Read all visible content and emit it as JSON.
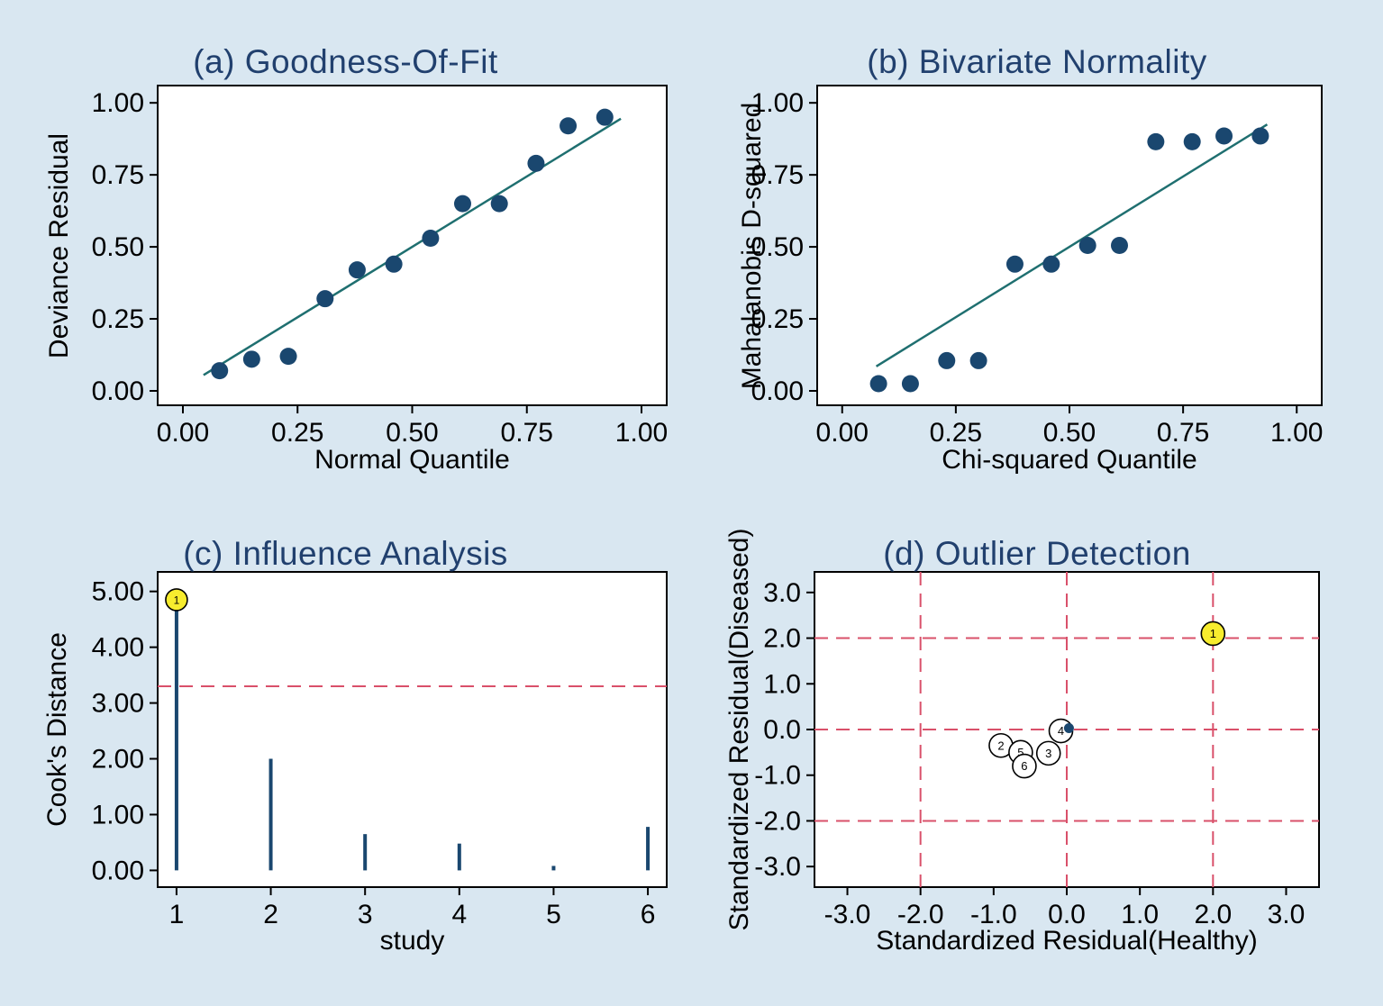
{
  "colors": {
    "page_bg": "#d9e7f1",
    "panel_bg": "#ffffff",
    "title_navy": "#21406e",
    "marker_navy": "#1a476f",
    "fit_teal": "#1f6f70",
    "ref_red": "#d9506a",
    "highlight_yellow": "#f7ec2e",
    "axis_black": "#000000"
  },
  "chart_data": [
    {
      "panel": "a",
      "type": "scatter",
      "title": "(a) Goodness-Of-Fit",
      "xlabel": "Normal Quantile",
      "ylabel": "Deviance Residual",
      "xlim": [
        -0.055,
        1.055
      ],
      "ylim": [
        -0.05,
        1.06
      ],
      "xticks": [
        {
          "v": 0,
          "label": "0.00"
        },
        {
          "v": 0.25,
          "label": "0.25"
        },
        {
          "v": 0.5,
          "label": "0.50"
        },
        {
          "v": 0.75,
          "label": "0.75"
        },
        {
          "v": 1,
          "label": "1.00"
        }
      ],
      "yticks": [
        {
          "v": 0,
          "label": "0.00"
        },
        {
          "v": 0.25,
          "label": "0.25"
        },
        {
          "v": 0.5,
          "label": "0.50"
        },
        {
          "v": 0.75,
          "label": "0.75"
        },
        {
          "v": 1,
          "label": "1.00"
        }
      ],
      "points": [
        [
          0.08,
          0.07
        ],
        [
          0.15,
          0.11
        ],
        [
          0.23,
          0.12
        ],
        [
          0.31,
          0.32
        ],
        [
          0.38,
          0.42
        ],
        [
          0.46,
          0.44
        ],
        [
          0.54,
          0.53
        ],
        [
          0.61,
          0.65
        ],
        [
          0.69,
          0.65
        ],
        [
          0.77,
          0.79
        ],
        [
          0.84,
          0.92
        ],
        [
          0.92,
          0.95
        ]
      ],
      "fit_line": [
        [
          0.045,
          0.055
        ],
        [
          0.955,
          0.945
        ]
      ]
    },
    {
      "panel": "b",
      "type": "scatter",
      "title": "(b) Bivariate Normality",
      "xlabel": "Chi-squared Quantile",
      "ylabel": "Mahalanobis D-squared",
      "xlim": [
        -0.055,
        1.055
      ],
      "ylim": [
        -0.05,
        1.06
      ],
      "xticks": [
        {
          "v": 0,
          "label": "0.00"
        },
        {
          "v": 0.25,
          "label": "0.25"
        },
        {
          "v": 0.5,
          "label": "0.50"
        },
        {
          "v": 0.75,
          "label": "0.75"
        },
        {
          "v": 1,
          "label": "1.00"
        }
      ],
      "yticks": [
        {
          "v": 0,
          "label": "0.00"
        },
        {
          "v": 0.25,
          "label": "0.25"
        },
        {
          "v": 0.5,
          "label": "0.50"
        },
        {
          "v": 0.75,
          "label": "0.75"
        },
        {
          "v": 1,
          "label": "1.00"
        }
      ],
      "points": [
        [
          0.08,
          0.025
        ],
        [
          0.15,
          0.025
        ],
        [
          0.23,
          0.105
        ],
        [
          0.3,
          0.105
        ],
        [
          0.38,
          0.44
        ],
        [
          0.46,
          0.44
        ],
        [
          0.54,
          0.505
        ],
        [
          0.61,
          0.505
        ],
        [
          0.69,
          0.865
        ],
        [
          0.77,
          0.865
        ],
        [
          0.84,
          0.885
        ],
        [
          0.92,
          0.885
        ]
      ],
      "fit_line": [
        [
          0.075,
          0.085
        ],
        [
          0.935,
          0.925
        ]
      ]
    },
    {
      "panel": "c",
      "type": "spike",
      "title": "(c) Influence Analysis",
      "xlabel": "study",
      "ylabel": "Cook's Distance",
      "xlim": [
        0.8,
        6.2
      ],
      "ylim": [
        -0.3,
        5.35
      ],
      "xticks": [
        {
          "v": 1,
          "label": "1"
        },
        {
          "v": 2,
          "label": "2"
        },
        {
          "v": 3,
          "label": "3"
        },
        {
          "v": 4,
          "label": "4"
        },
        {
          "v": 5,
          "label": "5"
        },
        {
          "v": 6,
          "label": "6"
        }
      ],
      "yticks": [
        {
          "v": 0,
          "label": "0.00"
        },
        {
          "v": 1,
          "label": "1.00"
        },
        {
          "v": 2,
          "label": "2.00"
        },
        {
          "v": 3,
          "label": "3.00"
        },
        {
          "v": 4,
          "label": "4.00"
        },
        {
          "v": 5,
          "label": "5.00"
        }
      ],
      "studies": [
        1,
        2,
        3,
        4,
        5,
        6
      ],
      "values": [
        4.85,
        2.0,
        0.65,
        0.48,
        0.08,
        0.78
      ],
      "reflines": {
        "y": [
          3.3
        ]
      },
      "highlight": {
        "x": 1,
        "y": 4.85,
        "label": "1"
      }
    },
    {
      "panel": "d",
      "type": "labeled-scatter",
      "title": "(d) Outlier Detection",
      "xlabel": "Standardized Residual(Healthy)",
      "ylabel": "Standardized Residual(Diseased)",
      "xlim": [
        -3.45,
        3.45
      ],
      "ylim": [
        -3.45,
        3.45
      ],
      "xticks": [
        {
          "v": -3,
          "label": "-3.0"
        },
        {
          "v": -2,
          "label": "-2.0"
        },
        {
          "v": -1,
          "label": "-1.0"
        },
        {
          "v": 0,
          "label": "0.0"
        },
        {
          "v": 1,
          "label": "1.0"
        },
        {
          "v": 2,
          "label": "2.0"
        },
        {
          "v": 3,
          "label": "3.0"
        }
      ],
      "yticks": [
        {
          "v": -3,
          "label": "-3.0"
        },
        {
          "v": -2,
          "label": "-2.0"
        },
        {
          "v": -1,
          "label": "-1.0"
        },
        {
          "v": 0,
          "label": "0.0"
        },
        {
          "v": 1,
          "label": "1.0"
        },
        {
          "v": 2,
          "label": "2.0"
        },
        {
          "v": 3,
          "label": "3.0"
        }
      ],
      "reflines": {
        "x": [
          -2,
          0,
          2
        ],
        "y": [
          -2,
          0,
          2
        ]
      },
      "points": [
        {
          "label": "1",
          "x": 2.0,
          "y": 2.1,
          "highlight": true
        },
        {
          "label": "2",
          "x": -0.9,
          "y": -0.35
        },
        {
          "label": "5",
          "x": -0.63,
          "y": -0.5
        },
        {
          "label": "6",
          "x": -0.58,
          "y": -0.8
        },
        {
          "label": "3",
          "x": -0.25,
          "y": -0.52
        },
        {
          "label": "4",
          "x": -0.08,
          "y": -0.03
        }
      ],
      "solid_point": {
        "x": 0.03,
        "y": 0.03
      }
    }
  ]
}
